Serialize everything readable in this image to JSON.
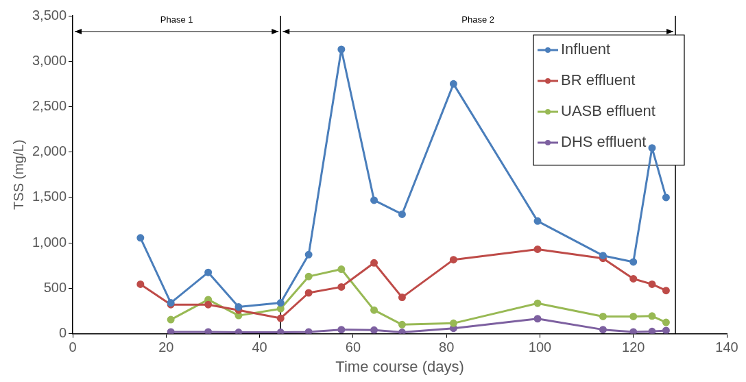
{
  "chart_data": {
    "type": "line",
    "xlabel": "Time course (days)",
    "ylabel": "TSS (mg/L)",
    "x": [
      14.5,
      21,
      29,
      35.5,
      44.5,
      50.5,
      57.5,
      64.5,
      70.5,
      81.5,
      99.5,
      113.5,
      120,
      124,
      127
    ],
    "xlim": [
      0,
      140
    ],
    "xticks": [
      0,
      20,
      40,
      60,
      80,
      100,
      120,
      140
    ],
    "ylim": [
      0,
      3500
    ],
    "yticks": [
      {
        "value": 0,
        "label": "0"
      },
      {
        "value": 500,
        "label": "500"
      },
      {
        "value": 1000,
        "label": "1,000"
      },
      {
        "value": 1500,
        "label": "1,500"
      },
      {
        "value": 2000,
        "label": "2,000"
      },
      {
        "value": 2500,
        "label": "2,500"
      },
      {
        "value": 3000,
        "label": "3,000"
      },
      {
        "value": 3500,
        "label": "3,500"
      }
    ],
    "series": [
      {
        "name": "Influent",
        "color": "#4a7ebb",
        "values": [
          1055,
          340,
          675,
          295,
          340,
          870,
          3130,
          1470,
          1315,
          2750,
          1240,
          860,
          790,
          2045,
          1500
        ]
      },
      {
        "name": "BR effluent",
        "color": "#be4b48",
        "values": [
          545,
          320,
          320,
          260,
          170,
          450,
          515,
          780,
          400,
          815,
          930,
          830,
          605,
          545,
          475
        ]
      },
      {
        "name": "UASB effluent",
        "color": "#98b954",
        "values": [
          null,
          155,
          375,
          200,
          275,
          630,
          710,
          260,
          100,
          115,
          335,
          190,
          190,
          195,
          125
        ]
      },
      {
        "name": "DHS effluent",
        "color": "#7d60a0",
        "values": [
          null,
          20,
          20,
          15,
          15,
          20,
          45,
          40,
          15,
          60,
          165,
          45,
          20,
          25,
          35
        ]
      }
    ],
    "annotations": [
      "Phase 1",
      "Phase 2"
    ],
    "ref_lines": [
      {
        "axis": "x",
        "value": 44.5,
        "color": "#000000"
      },
      {
        "axis": "x",
        "value": 129,
        "color": "#000000"
      }
    ],
    "marker": "circle",
    "line_style": "solid",
    "grid": false,
    "legend": "top right"
  }
}
